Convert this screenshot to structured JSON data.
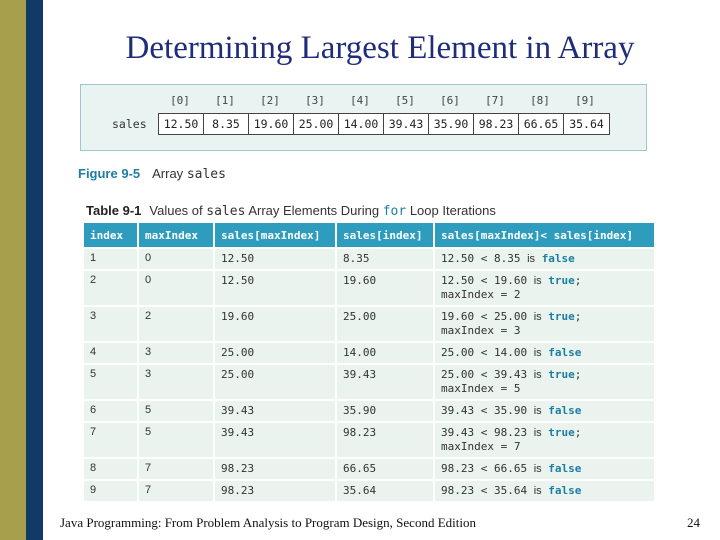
{
  "slide": {
    "title": "Determining Largest Element in Array",
    "footer": "Java Programming: From Problem Analysis to Program Design, Second Edition",
    "page_number": "24"
  },
  "array_figure": {
    "array_label": "sales",
    "indices": [
      "[0]",
      "[1]",
      "[2]",
      "[3]",
      "[4]",
      "[5]",
      "[6]",
      "[7]",
      "[8]",
      "[9]"
    ],
    "values": [
      "12.50",
      "8.35",
      "19.60",
      "25.00",
      "14.00",
      "39.43",
      "35.90",
      "98.23",
      "66.65",
      "35.64"
    ],
    "caption_number": "Figure 9-5",
    "caption_text": "Array",
    "caption_code": "sales"
  },
  "table": {
    "caption_number": "Table 9-1",
    "caption_prefix": "Values of",
    "caption_code1": "sales",
    "caption_mid": "Array Elements During",
    "caption_code2": "for",
    "caption_suffix": "Loop Iterations",
    "headers": [
      "index",
      "maxIndex",
      "sales[maxIndex]",
      "sales[index]",
      "sales[maxIndex]< sales[index]"
    ],
    "rows": [
      {
        "index": "1",
        "maxIndex": "0",
        "sales_max": "12.50",
        "sales_index": "8.35",
        "cmp": "12.50 < 8.35",
        "is": "is",
        "result": "false",
        "suffix": "",
        "assign": ""
      },
      {
        "index": "2",
        "maxIndex": "0",
        "sales_max": "12.50",
        "sales_index": "19.60",
        "cmp": "12.50 < 19.60",
        "is": "is",
        "result": "true",
        "suffix": ";",
        "assign": "maxIndex = 2"
      },
      {
        "index": "3",
        "maxIndex": "2",
        "sales_max": "19.60",
        "sales_index": "25.00",
        "cmp": "19.60 < 25.00",
        "is": "is",
        "result": "true",
        "suffix": ";",
        "assign": "maxIndex = 3"
      },
      {
        "index": "4",
        "maxIndex": "3",
        "sales_max": "25.00",
        "sales_index": "14.00",
        "cmp": "25.00 < 14.00",
        "is": "is",
        "result": "false",
        "suffix": "",
        "assign": ""
      },
      {
        "index": "5",
        "maxIndex": "3",
        "sales_max": "25.00",
        "sales_index": "39.43",
        "cmp": "25.00 < 39.43",
        "is": "is",
        "result": "true",
        "suffix": ";",
        "assign": "maxIndex = 5"
      },
      {
        "index": "6",
        "maxIndex": "5",
        "sales_max": "39.43",
        "sales_index": "35.90",
        "cmp": "39.43 < 35.90",
        "is": "is",
        "result": "false",
        "suffix": "",
        "assign": ""
      },
      {
        "index": "7",
        "maxIndex": "5",
        "sales_max": "39.43",
        "sales_index": "98.23",
        "cmp": "39.43 < 98.23",
        "is": "is",
        "result": "true",
        "suffix": ";",
        "assign": "maxIndex = 7"
      },
      {
        "index": "8",
        "maxIndex": "7",
        "sales_max": "98.23",
        "sales_index": "66.65",
        "cmp": "98.23 < 66.65",
        "is": "is",
        "result": "false",
        "suffix": "",
        "assign": ""
      },
      {
        "index": "9",
        "maxIndex": "7",
        "sales_max": "98.23",
        "sales_index": "35.64",
        "cmp": "98.23 < 35.64",
        "is": "is",
        "result": "false",
        "suffix": "",
        "assign": ""
      }
    ]
  },
  "colors": {
    "title": "#1f2c7a",
    "header_bg": "#2e9dbd",
    "table_bg": "#eaf3ee",
    "accent": "#1e7ea1"
  }
}
